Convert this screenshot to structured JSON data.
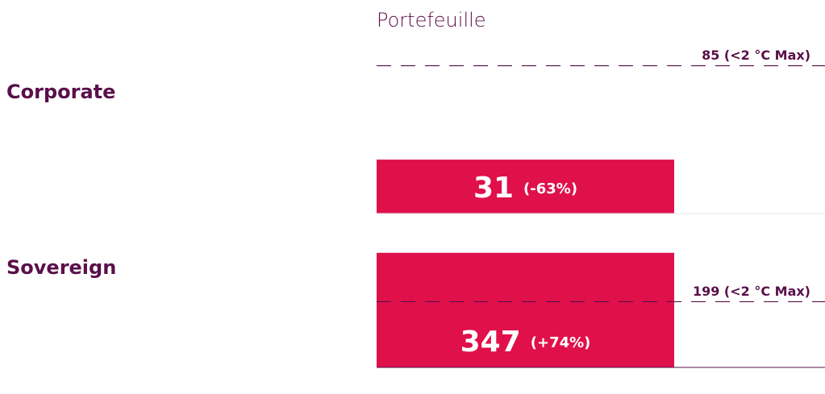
{
  "header": "Portefeuille",
  "chart_data": [
    {
      "type": "bar",
      "categories": [
        "Corporate"
      ],
      "values": [
        31
      ],
      "change_labels": [
        "(-63%)"
      ],
      "color": "#e0104a",
      "ylim": [
        0,
        95
      ],
      "reference": {
        "value": 85,
        "label": "85 (<2 °C Max)"
      }
    },
    {
      "type": "bar",
      "categories": [
        "Sovereign"
      ],
      "values": [
        347
      ],
      "change_labels": [
        "(+74%)"
      ],
      "color": "#e0104a",
      "ylim": [
        0,
        405
      ],
      "reference": {
        "value": 199,
        "label": "199 (<2 °C Max)"
      }
    }
  ]
}
